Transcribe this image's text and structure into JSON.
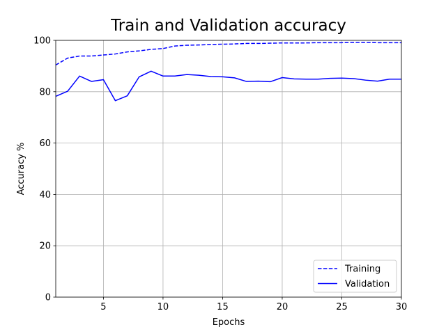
{
  "chart_data": {
    "type": "line",
    "title": "Train and Validation accuracy",
    "xlabel": "Epochs",
    "ylabel": "Accuracy %",
    "xlim": [
      1,
      30
    ],
    "ylim": [
      0,
      100
    ],
    "xticks": [
      5,
      10,
      15,
      20,
      25,
      30
    ],
    "yticks": [
      0,
      20,
      40,
      60,
      80,
      100
    ],
    "grid": true,
    "legend_position": "lower-right",
    "x": [
      1,
      2,
      3,
      4,
      5,
      6,
      7,
      8,
      9,
      10,
      11,
      12,
      13,
      14,
      15,
      16,
      17,
      18,
      19,
      20,
      21,
      22,
      23,
      24,
      25,
      26,
      27,
      28,
      29,
      30
    ],
    "series": [
      {
        "name": "Training",
        "color": "#0000ff",
        "line_style": "dashed",
        "values": [
          90.4,
          93.1,
          93.9,
          93.9,
          94.3,
          94.7,
          95.5,
          95.9,
          96.5,
          96.8,
          97.8,
          98.1,
          98.2,
          98.4,
          98.5,
          98.6,
          98.8,
          98.8,
          98.9,
          99.0,
          99.0,
          99.0,
          99.1,
          99.1,
          99.1,
          99.2,
          99.2,
          99.1,
          99.1,
          99.1
        ]
      },
      {
        "name": "Validation",
        "color": "#0000ff",
        "line_style": "solid",
        "values": [
          78.2,
          80.2,
          86.1,
          84.0,
          84.7,
          76.5,
          78.4,
          85.8,
          88.0,
          86.1,
          86.1,
          86.7,
          86.4,
          85.9,
          85.8,
          85.4,
          84.0,
          84.1,
          83.9,
          85.5,
          85.0,
          84.9,
          84.9,
          85.2,
          85.3,
          85.1,
          84.5,
          84.1,
          84.9,
          84.9
        ]
      }
    ]
  }
}
